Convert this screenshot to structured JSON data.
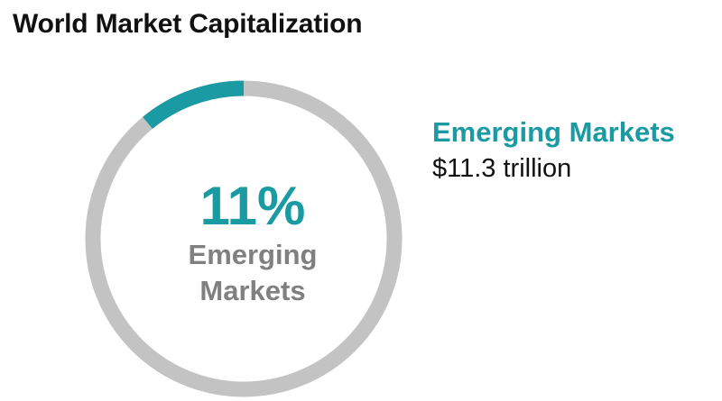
{
  "title": "World Market Capitalization",
  "colors": {
    "accent": "#1a9aa3",
    "track": "#c3c3c3",
    "center_label": "#808080"
  },
  "chart_data": {
    "type": "pie",
    "title": "World Market Capitalization",
    "slices": [
      {
        "label": "Emerging Markets",
        "percent": 11,
        "value": "$11.3 trillion"
      }
    ],
    "center": {
      "percent_text": "11%",
      "label_lines": [
        "Emerging",
        "Markets"
      ]
    },
    "legend": {
      "name": "Emerging Markets",
      "value": "$11.3 trillion",
      "placement": "right"
    }
  }
}
